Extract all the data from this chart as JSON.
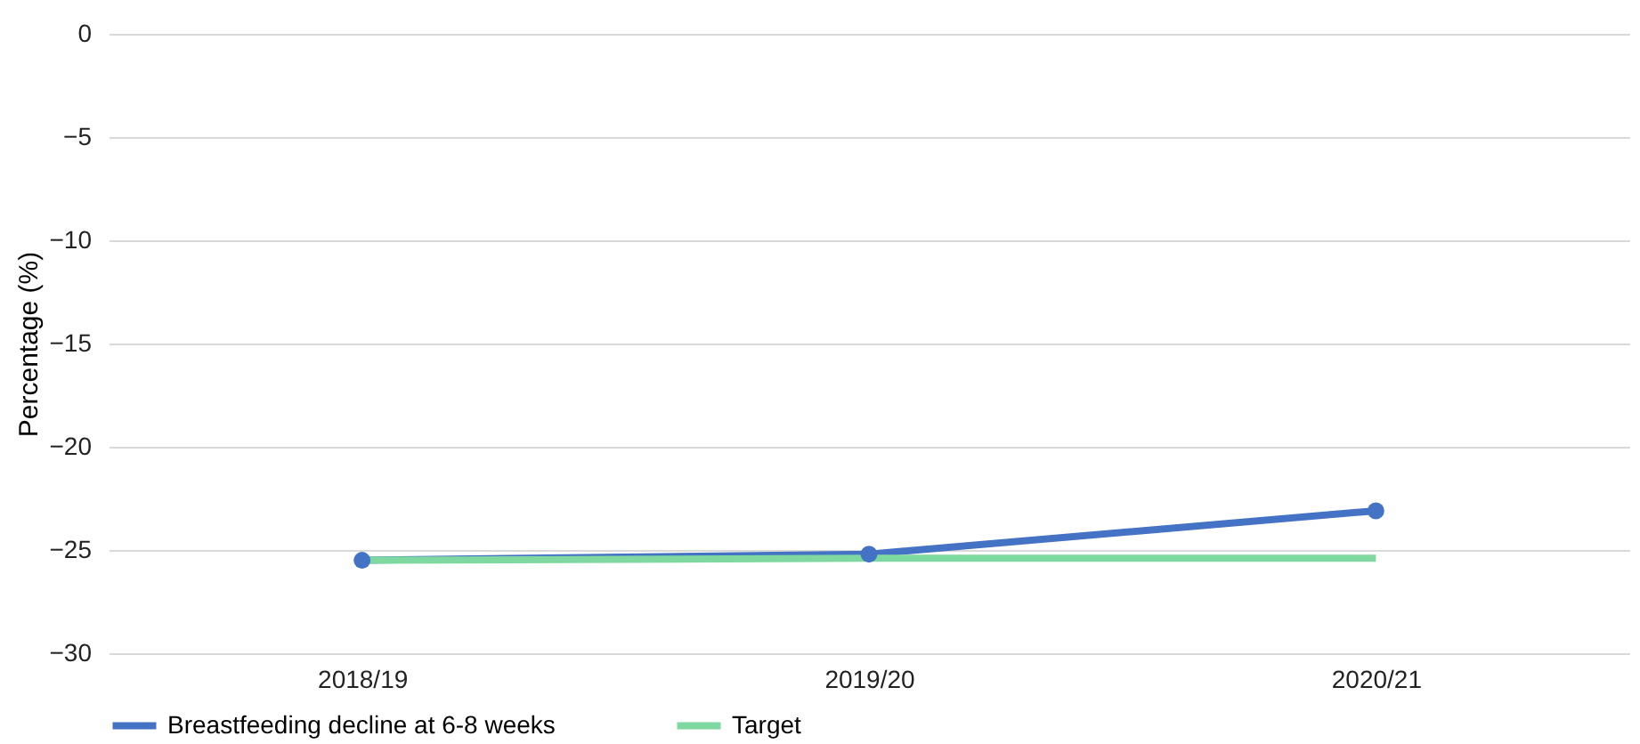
{
  "chart_data": {
    "type": "line",
    "ylabel": "Percentage (%)",
    "categories": [
      "2018/19",
      "2019/20",
      "2020/21"
    ],
    "series": [
      {
        "name": "Breastfeeding decline at 6-8 weeks",
        "color": "#4472c4",
        "marker": "circle",
        "values": [
          -25.5,
          -25.2,
          -23.1
        ]
      },
      {
        "name": "Target",
        "color": "#7fd8a0",
        "marker": "none",
        "values": [
          -25.5,
          -25.4,
          -25.4
        ]
      }
    ],
    "ylim": [
      -30,
      0
    ],
    "yticks": [
      -30,
      -25,
      -20,
      -15,
      -10,
      -5,
      0
    ],
    "grid": "y",
    "legend": "bottom",
    "line_style": "solid"
  }
}
